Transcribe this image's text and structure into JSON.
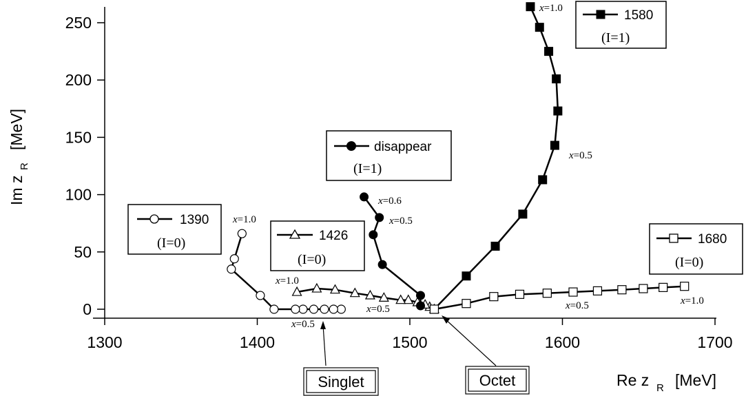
{
  "chart_data": {
    "type": "line",
    "xlabel": "Re z",
    "xlabel_sub": "R",
    "xunit": "[MeV]",
    "ylabel": "Im z",
    "ylabel_sub": "R",
    "yunit": "[MeV]",
    "xlim": [
      1285,
      1705
    ],
    "ylim": [
      -8,
      265
    ],
    "xticks": [
      1300,
      1400,
      1500,
      1600,
      1700
    ],
    "yticks": [
      0,
      50,
      100,
      150,
      200,
      250
    ],
    "series": [
      {
        "name": "1390",
        "isospin": "(I=0)",
        "marker": "open-circle",
        "x": [
          1455,
          1450,
          1444,
          1437,
          1430,
          1425,
          1411,
          1402,
          1383,
          1385,
          1390
        ],
        "y": [
          0,
          0,
          0,
          0,
          0,
          0,
          0,
          12,
          35,
          44,
          66
        ]
      },
      {
        "name": "1426",
        "isospin": "(I=0)",
        "marker": "open-triangle",
        "x": [
          1516,
          1513,
          1510,
          1505,
          1499,
          1494,
          1483,
          1474,
          1464,
          1451,
          1439,
          1426
        ],
        "y": [
          0,
          2,
          4,
          6,
          8,
          8,
          10,
          12,
          14,
          17,
          18,
          15
        ]
      },
      {
        "name": "disappear",
        "isospin": "(I=1)",
        "marker": "filled-circle",
        "x": [
          1516,
          1507,
          1507,
          1482,
          1476,
          1480,
          1470
        ],
        "y": [
          0,
          3,
          12,
          39,
          65,
          80,
          98
        ]
      },
      {
        "name": "1580",
        "isospin": "(I=1)",
        "marker": "filled-square",
        "x": [
          1516,
          1537,
          1556,
          1574,
          1587,
          1595,
          1597,
          1596,
          1591,
          1585,
          1579
        ],
        "y": [
          0,
          29,
          55,
          83,
          113,
          143,
          173,
          201,
          225,
          246,
          264
        ]
      },
      {
        "name": "1680",
        "isospin": "(I=0)",
        "marker": "open-square",
        "x": [
          1516,
          1537,
          1555,
          1572,
          1590,
          1607,
          1623,
          1639,
          1653,
          1666,
          1680
        ],
        "y": [
          0,
          5,
          11,
          13,
          14,
          15,
          16,
          17,
          18,
          19,
          20
        ]
      }
    ],
    "annotations": [
      {
        "text": "Singlet"
      },
      {
        "text": "Octet"
      }
    ],
    "x_param_labels": [
      {
        "italic": "x",
        "value": "=1.0"
      },
      {
        "italic": "x",
        "value": "=0.5"
      },
      {
        "italic": "x",
        "value": "=1.0"
      },
      {
        "italic": "x",
        "value": "=0.5"
      },
      {
        "italic": "x",
        "value": "=0.6"
      },
      {
        "italic": "x",
        "value": "=0.5"
      },
      {
        "italic": "x",
        "value": "=1.0"
      },
      {
        "italic": "x",
        "value": "=0.5"
      },
      {
        "italic": "x",
        "value": "=0.5"
      },
      {
        "italic": "x",
        "value": "=1.0"
      }
    ]
  }
}
